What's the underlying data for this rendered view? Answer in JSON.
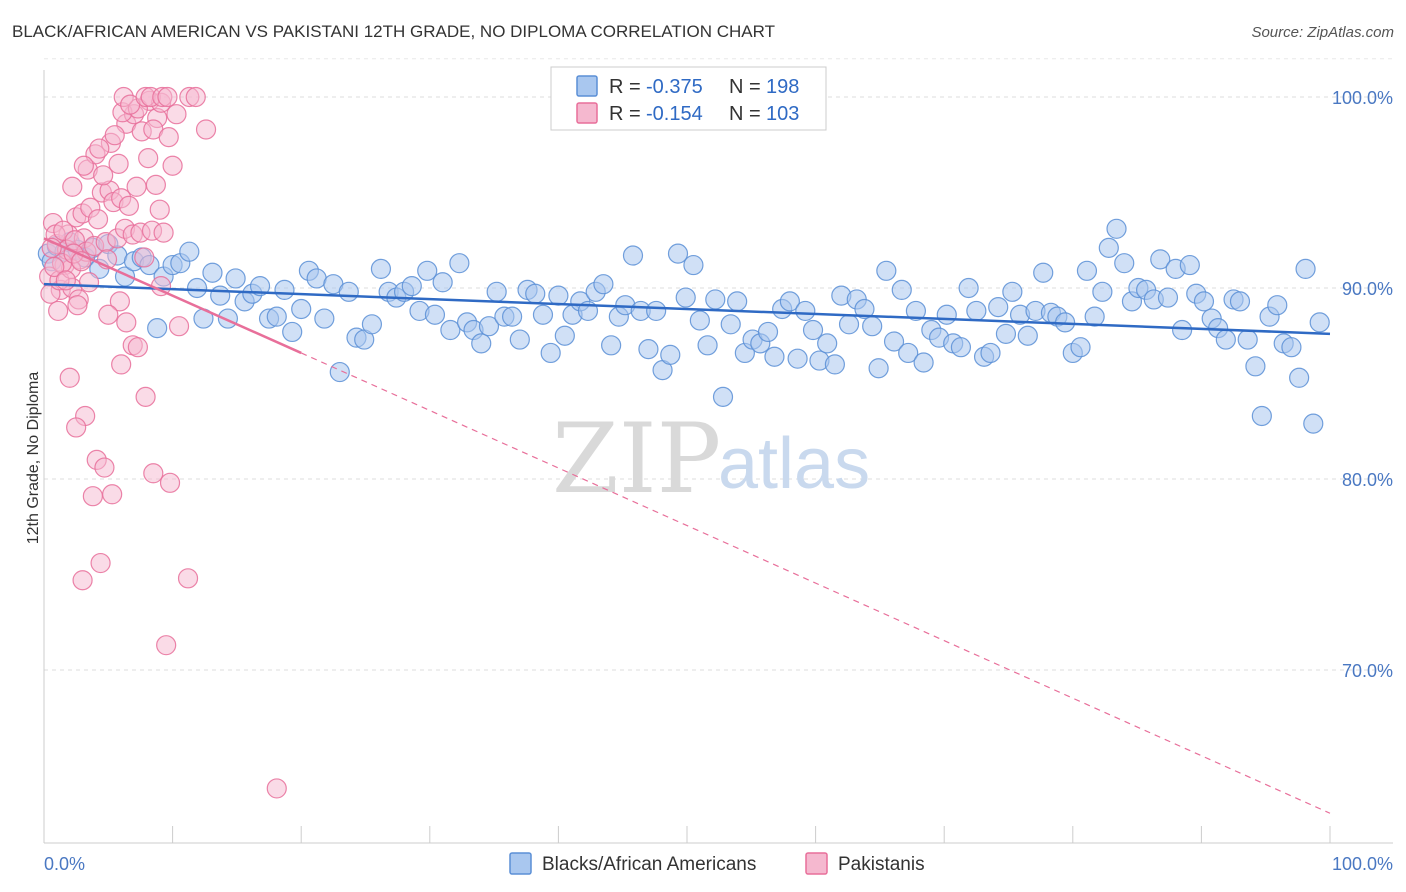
{
  "title": "BLACK/AFRICAN AMERICAN VS PAKISTANI 12TH GRADE, NO DIPLOMA CORRELATION CHART",
  "source": "Source: ZipAtlas.com",
  "watermark": {
    "zip": "ZIP",
    "atlas": "atlas"
  },
  "colors": {
    "blue": "#5b8fd6",
    "blue_fill": "#a9c7ef",
    "blue_line": "#2f6ac4",
    "pink": "#e86f9a",
    "pink_fill": "#f5b8cf",
    "axis_text": "#4a78c2"
  },
  "legend": [
    {
      "r_label": "R =",
      "r_value": "-0.375",
      "n_label": "N =",
      "n_value": "198"
    },
    {
      "r_label": "R =",
      "r_value": "-0.154",
      "n_label": "N =",
      "n_value": "103"
    }
  ],
  "chart_data": {
    "type": "scatter",
    "title": "BLACK/AFRICAN AMERICAN VS PAKISTANI 12TH GRADE, NO DIPLOMA CORRELATION CHART",
    "xlabel": "",
    "ylabel": "12th Grade, No Diploma",
    "xlim": [
      0,
      100
    ],
    "ylim": [
      60.5,
      102
    ],
    "x_tick_labels": [
      "0.0%",
      "100.0%"
    ],
    "y_ticks": [
      100,
      90,
      80,
      70
    ],
    "y_tick_labels": [
      "100.0%",
      "90.0%",
      "80.0%",
      "70.0%"
    ],
    "grid": true,
    "legend_position": "top-center",
    "series": [
      {
        "name": "Blacks/African Americans",
        "r": -0.375,
        "n": 198,
        "trend": {
          "x": [
            0,
            100
          ],
          "y": [
            90.2,
            87.6
          ]
        },
        "points": [
          [
            0.3,
            91.8
          ],
          [
            0.6,
            91.4
          ],
          [
            1.0,
            92.2
          ],
          [
            1.6,
            91.9
          ],
          [
            2.0,
            92.4
          ],
          [
            2.6,
            92.0
          ],
          [
            3.2,
            91.6
          ],
          [
            3.8,
            92.1
          ],
          [
            4.3,
            91.0
          ],
          [
            5.0,
            92.3
          ],
          [
            5.7,
            91.7
          ],
          [
            6.3,
            90.6
          ],
          [
            7.0,
            91.4
          ],
          [
            7.6,
            91.6
          ],
          [
            8.2,
            91.2
          ],
          [
            8.8,
            87.9
          ],
          [
            9.3,
            90.6
          ],
          [
            10.0,
            91.2
          ],
          [
            10.6,
            91.3
          ],
          [
            11.3,
            91.9
          ],
          [
            11.9,
            90.0
          ],
          [
            12.4,
            88.4
          ],
          [
            13.1,
            90.8
          ],
          [
            13.7,
            89.6
          ],
          [
            14.3,
            88.4
          ],
          [
            14.9,
            90.5
          ],
          [
            15.6,
            89.3
          ],
          [
            16.2,
            89.7
          ],
          [
            16.8,
            90.1
          ],
          [
            17.5,
            88.4
          ],
          [
            18.1,
            88.5
          ],
          [
            18.7,
            89.9
          ],
          [
            19.3,
            87.7
          ],
          [
            20.0,
            88.9
          ],
          [
            20.6,
            90.9
          ],
          [
            21.2,
            90.5
          ],
          [
            21.8,
            88.4
          ],
          [
            22.5,
            90.2
          ],
          [
            23.0,
            85.6
          ],
          [
            23.7,
            89.8
          ],
          [
            24.3,
            87.4
          ],
          [
            24.9,
            87.3
          ],
          [
            25.5,
            88.1
          ],
          [
            26.2,
            91.0
          ],
          [
            26.8,
            89.8
          ],
          [
            27.4,
            89.5
          ],
          [
            28.0,
            89.8
          ],
          [
            28.6,
            90.1
          ],
          [
            29.2,
            88.8
          ],
          [
            29.8,
            90.9
          ],
          [
            30.4,
            88.6
          ],
          [
            31.0,
            90.3
          ],
          [
            31.6,
            87.8
          ],
          [
            32.3,
            91.3
          ],
          [
            32.9,
            88.2
          ],
          [
            33.4,
            87.8
          ],
          [
            34.0,
            87.1
          ],
          [
            34.6,
            88.0
          ],
          [
            35.2,
            89.8
          ],
          [
            35.8,
            88.5
          ],
          [
            36.4,
            88.5
          ],
          [
            37.0,
            87.3
          ],
          [
            37.6,
            89.9
          ],
          [
            38.2,
            89.7
          ],
          [
            38.8,
            88.6
          ],
          [
            39.4,
            86.6
          ],
          [
            40.0,
            89.6
          ],
          [
            40.5,
            87.5
          ],
          [
            41.1,
            88.6
          ],
          [
            41.7,
            89.3
          ],
          [
            42.3,
            88.8
          ],
          [
            42.9,
            89.8
          ],
          [
            43.5,
            90.2
          ],
          [
            44.1,
            87.0
          ],
          [
            44.7,
            88.5
          ],
          [
            45.2,
            89.1
          ],
          [
            45.8,
            91.7
          ],
          [
            46.4,
            88.8
          ],
          [
            47.0,
            86.8
          ],
          [
            47.6,
            88.8
          ],
          [
            48.1,
            85.7
          ],
          [
            48.7,
            86.5
          ],
          [
            49.3,
            91.8
          ],
          [
            49.9,
            89.5
          ],
          [
            50.5,
            91.2
          ],
          [
            51.0,
            88.3
          ],
          [
            51.6,
            87.0
          ],
          [
            52.2,
            89.4
          ],
          [
            52.8,
            84.3
          ],
          [
            53.4,
            88.1
          ],
          [
            53.9,
            89.3
          ],
          [
            54.5,
            86.6
          ],
          [
            55.1,
            87.3
          ],
          [
            55.7,
            87.1
          ],
          [
            56.3,
            87.7
          ],
          [
            56.8,
            86.4
          ],
          [
            57.4,
            88.9
          ],
          [
            58.0,
            89.3
          ],
          [
            58.6,
            86.3
          ],
          [
            59.2,
            88.8
          ],
          [
            59.8,
            87.8
          ],
          [
            60.3,
            86.2
          ],
          [
            60.9,
            87.1
          ],
          [
            61.5,
            86.0
          ],
          [
            62.0,
            89.6
          ],
          [
            62.6,
            88.1
          ],
          [
            63.2,
            89.4
          ],
          [
            63.8,
            88.9
          ],
          [
            64.4,
            88.0
          ],
          [
            64.9,
            85.8
          ],
          [
            65.5,
            90.9
          ],
          [
            66.1,
            87.2
          ],
          [
            66.7,
            89.9
          ],
          [
            67.2,
            86.6
          ],
          [
            67.8,
            88.8
          ],
          [
            68.4,
            86.1
          ],
          [
            69.0,
            87.8
          ],
          [
            69.6,
            87.4
          ],
          [
            70.2,
            88.6
          ],
          [
            70.7,
            87.1
          ],
          [
            71.3,
            86.9
          ],
          [
            71.9,
            90.0
          ],
          [
            72.5,
            88.8
          ],
          [
            73.1,
            86.4
          ],
          [
            73.6,
            86.6
          ],
          [
            74.2,
            89.0
          ],
          [
            74.8,
            87.6
          ],
          [
            75.3,
            89.8
          ],
          [
            75.9,
            88.6
          ],
          [
            76.5,
            87.5
          ],
          [
            77.1,
            88.8
          ],
          [
            77.7,
            90.8
          ],
          [
            78.3,
            88.7
          ],
          [
            78.8,
            88.5
          ],
          [
            79.4,
            88.2
          ],
          [
            80.0,
            86.6
          ],
          [
            80.6,
            86.9
          ],
          [
            81.1,
            90.9
          ],
          [
            81.7,
            88.5
          ],
          [
            82.3,
            89.8
          ],
          [
            82.8,
            92.1
          ],
          [
            83.4,
            93.1
          ],
          [
            84.0,
            91.3
          ],
          [
            84.6,
            89.3
          ],
          [
            85.1,
            90.0
          ],
          [
            85.7,
            89.9
          ],
          [
            86.3,
            89.4
          ],
          [
            86.8,
            91.5
          ],
          [
            87.4,
            89.5
          ],
          [
            88.0,
            91.0
          ],
          [
            88.5,
            87.8
          ],
          [
            89.1,
            91.2
          ],
          [
            89.6,
            89.7
          ],
          [
            90.2,
            89.3
          ],
          [
            90.8,
            88.4
          ],
          [
            91.3,
            87.9
          ],
          [
            91.9,
            87.3
          ],
          [
            92.5,
            89.4
          ],
          [
            93.0,
            89.3
          ],
          [
            93.6,
            87.3
          ],
          [
            94.2,
            85.9
          ],
          [
            94.7,
            83.3
          ],
          [
            95.3,
            88.5
          ],
          [
            95.9,
            89.1
          ],
          [
            96.4,
            87.1
          ],
          [
            97.0,
            86.9
          ],
          [
            97.6,
            85.3
          ],
          [
            98.1,
            91.0
          ],
          [
            98.7,
            82.9
          ],
          [
            99.2,
            88.2
          ]
        ]
      },
      {
        "name": "Pakistanis",
        "r": -0.154,
        "n": 103,
        "trend": {
          "x": [
            0,
            20
          ],
          "y": [
            92.6,
            86.6
          ],
          "dashed_x": [
            20,
            100
          ],
          "dashed_y": [
            86.6,
            62.5
          ]
        },
        "points": [
          [
            0.4,
            90.6
          ],
          [
            0.7,
            93.4
          ],
          [
            1.0,
            92.3
          ],
          [
            1.3,
            89.9
          ],
          [
            1.6,
            91.2
          ],
          [
            1.9,
            92.8
          ],
          [
            2.2,
            90.0
          ],
          [
            2.5,
            93.7
          ],
          [
            2.8,
            91.5
          ],
          [
            3.1,
            92.6
          ],
          [
            0.5,
            89.7
          ],
          [
            0.9,
            92.8
          ],
          [
            1.2,
            90.4
          ],
          [
            1.5,
            93.0
          ],
          [
            1.8,
            92.0
          ],
          [
            2.1,
            91.0
          ],
          [
            2.4,
            92.5
          ],
          [
            2.7,
            89.4
          ],
          [
            3.0,
            93.9
          ],
          [
            3.3,
            91.9
          ],
          [
            3.6,
            94.2
          ],
          [
            3.9,
            92.2
          ],
          [
            4.2,
            93.6
          ],
          [
            4.5,
            95.0
          ],
          [
            4.8,
            92.4
          ],
          [
            5.1,
            95.1
          ],
          [
            5.4,
            94.5
          ],
          [
            5.7,
            92.6
          ],
          [
            6.0,
            94.7
          ],
          [
            6.3,
            93.1
          ],
          [
            6.6,
            94.3
          ],
          [
            6.9,
            92.8
          ],
          [
            7.2,
            95.3
          ],
          [
            7.5,
            92.9
          ],
          [
            7.8,
            91.6
          ],
          [
            8.1,
            96.8
          ],
          [
            8.4,
            93.0
          ],
          [
            8.7,
            95.4
          ],
          [
            9.0,
            94.1
          ],
          [
            9.3,
            92.9
          ],
          [
            3.4,
            96.2
          ],
          [
            4.0,
            97.0
          ],
          [
            4.6,
            95.9
          ],
          [
            5.2,
            97.6
          ],
          [
            5.8,
            96.5
          ],
          [
            6.4,
            98.6
          ],
          [
            7.0,
            99.1
          ],
          [
            7.6,
            98.2
          ],
          [
            8.2,
            99.8
          ],
          [
            8.8,
            98.9
          ],
          [
            2.2,
            95.3
          ],
          [
            3.1,
            96.4
          ],
          [
            4.3,
            97.3
          ],
          [
            5.5,
            98.0
          ],
          [
            6.1,
            99.2
          ],
          [
            7.3,
            99.4
          ],
          [
            8.5,
            98.3
          ],
          [
            9.1,
            99.7
          ],
          [
            9.7,
            97.9
          ],
          [
            10.3,
            99.1
          ],
          [
            6.2,
            100.0
          ],
          [
            6.7,
            99.6
          ],
          [
            7.9,
            100.0
          ],
          [
            8.3,
            100.0
          ],
          [
            9.2,
            100.0
          ],
          [
            9.6,
            100.0
          ],
          [
            11.3,
            100.0
          ],
          [
            11.8,
            100.0
          ],
          [
            12.6,
            98.3
          ],
          [
            10.0,
            96.4
          ],
          [
            1.1,
            88.8
          ],
          [
            2.0,
            85.3
          ],
          [
            2.6,
            89.1
          ],
          [
            3.2,
            83.3
          ],
          [
            4.1,
            81.0
          ],
          [
            4.7,
            80.6
          ],
          [
            5.3,
            79.2
          ],
          [
            5.9,
            89.3
          ],
          [
            6.4,
            88.2
          ],
          [
            6.9,
            87.0
          ],
          [
            7.3,
            86.9
          ],
          [
            7.9,
            84.3
          ],
          [
            8.5,
            80.3
          ],
          [
            9.1,
            90.1
          ],
          [
            9.8,
            79.8
          ],
          [
            10.5,
            88.0
          ],
          [
            11.2,
            74.8
          ],
          [
            2.5,
            82.7
          ],
          [
            3.8,
            79.1
          ],
          [
            4.4,
            75.6
          ],
          [
            5.0,
            88.6
          ],
          [
            6.0,
            86.0
          ],
          [
            3.0,
            74.7
          ],
          [
            9.5,
            71.3
          ],
          [
            18.1,
            63.8
          ],
          [
            1.4,
            91.3
          ],
          [
            0.8,
            91.1
          ],
          [
            1.7,
            90.4
          ],
          [
            2.3,
            91.8
          ],
          [
            2.9,
            91.4
          ],
          [
            3.5,
            90.3
          ],
          [
            4.9,
            91.5
          ],
          [
            0.6,
            92.1
          ]
        ]
      }
    ]
  },
  "bottom_legend": [
    "Blacks/African Americans",
    "Pakistanis"
  ]
}
